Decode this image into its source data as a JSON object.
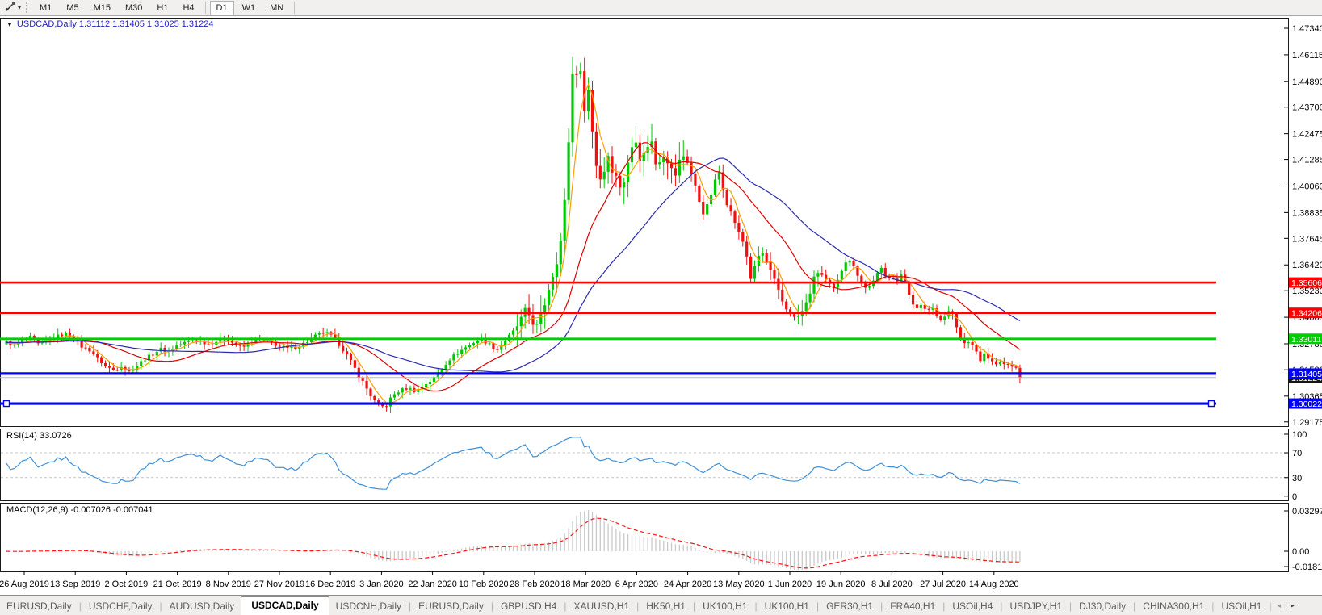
{
  "toolbar": {
    "tool_icon": "trendline-cursor-icon",
    "dropdown_icon": "chevron-down-icon",
    "timeframes": [
      {
        "label": "M1",
        "active": false
      },
      {
        "label": "M5",
        "active": false
      },
      {
        "label": "M15",
        "active": false
      },
      {
        "label": "M30",
        "active": false
      },
      {
        "label": "H1",
        "active": false
      },
      {
        "label": "H4",
        "active": false
      },
      {
        "label": "D1",
        "active": true
      },
      {
        "label": "W1",
        "active": false
      },
      {
        "label": "MN",
        "active": false
      }
    ]
  },
  "chart_title": {
    "dropdown": "▼",
    "text": "USDCAD,Daily  1.31112 1.31405 1.31025 1.31224"
  },
  "price_axis": {
    "labels": [
      "1.47340",
      "1.46115",
      "1.44890",
      "1.43700",
      "1.42475",
      "1.41285",
      "1.40060",
      "1.38835",
      "1.37645",
      "1.36420",
      "1.35230",
      "1.34005",
      "1.32780",
      "1.31580",
      "1.30365",
      "1.29175"
    ]
  },
  "levels": [
    {
      "value": 1.35606,
      "label": "1.35606",
      "color": "#ff0000",
      "width": 2.6,
      "selected": false
    },
    {
      "value": 1.34206,
      "label": "1.34206",
      "color": "#ff0000",
      "width": 2.6,
      "selected": false
    },
    {
      "value": 1.33011,
      "label": "1.33011",
      "color": "#00ce00",
      "width": 2.8,
      "selected": false
    },
    {
      "value": 1.31405,
      "label": "1.31405",
      "color": "#0000ff",
      "width": 3.2,
      "selected": false
    },
    {
      "value": 1.30022,
      "label": "1.30022",
      "color": "#0000ff",
      "width": 3.2,
      "selected": true
    }
  ],
  "current_price": {
    "value": 1.31224,
    "label": "1.31224",
    "line_color": "#bbbbbb",
    "badge_color": "#141414"
  },
  "indicators": {
    "rsi": {
      "label": "RSI(14) 33.0726",
      "period": 14,
      "current": 33.0726,
      "axis": [
        "100",
        "70",
        "30",
        "0"
      ],
      "guide_levels": [
        70,
        30
      ],
      "line_color": "#3f90d8"
    },
    "macd": {
      "label": "MACD(12,26,9) -0.007026 -0.007041",
      "fast": 12,
      "slow": 26,
      "signal": 9,
      "values": [
        -0.007026,
        -0.007041
      ],
      "axis": [
        "0.032972",
        "0.00",
        "-0.018154"
      ],
      "hist_color": "#c9c9c9",
      "signal_color": "#ff1414"
    }
  },
  "x_axis": {
    "dates": [
      "26 Aug 2019",
      "13 Sep 2019",
      "2 Oct 2019",
      "21 Oct 2019",
      "8 Nov 2019",
      "27 Nov 2019",
      "16 Dec 2019",
      "3 Jan 2020",
      "22 Jan 2020",
      "10 Feb 2020",
      "28 Feb 2020",
      "18 Mar 2020",
      "6 Apr 2020",
      "24 Apr 2020",
      "13 May 2020",
      "1 Jun 2020",
      "19 Jun 2020",
      "8 Jul 2020",
      "27 Jul 2020",
      "14 Aug 2020"
    ]
  },
  "tabs": {
    "items": [
      {
        "label": "EURUSD,Daily",
        "active": false
      },
      {
        "label": "USDCHF,Daily",
        "active": false
      },
      {
        "label": "AUDUSD,Daily",
        "active": false
      },
      {
        "label": "USDCAD,Daily",
        "active": true
      },
      {
        "label": "USDCNH,Daily",
        "active": false
      },
      {
        "label": "EURUSD,Daily",
        "active": false
      },
      {
        "label": "GBPUSD,H4",
        "active": false
      },
      {
        "label": "XAUUSD,H1",
        "active": false
      },
      {
        "label": "HK50,H1",
        "active": false
      },
      {
        "label": "UK100,H1",
        "active": false
      },
      {
        "label": "UK100,H1",
        "active": false
      },
      {
        "label": "GER30,H1",
        "active": false
      },
      {
        "label": "FRA40,H1",
        "active": false
      },
      {
        "label": "USOil,H4",
        "active": false
      },
      {
        "label": "USDJPY,H1",
        "active": false
      },
      {
        "label": "DJ30,Daily",
        "active": false
      },
      {
        "label": "CHINA300,H1",
        "active": false
      },
      {
        "label": "USOil,H1",
        "active": false
      }
    ],
    "scroll_left": "◂",
    "scroll_right": "▸"
  },
  "colors": {
    "bull": "#00c800",
    "bear": "#f01010",
    "ma_fast": "#ff9c00",
    "ma_medium": "#e00000",
    "ma_slow": "#2b2bb0",
    "pane_border": "#1a1a1a",
    "grid_dash": "#c4c4c4"
  },
  "chart_data": {
    "type": "candlestick",
    "symbol": "USDCAD",
    "timeframe": "Daily",
    "ohlc_display": {
      "open": 1.31112,
      "high": 1.31405,
      "low": 1.31025,
      "close": 1.31224
    },
    "y_axis": {
      "visible_min": 1.29,
      "visible_max": 1.478
    },
    "support_resistance": [
      1.35606,
      1.34206,
      1.33011,
      1.31405,
      1.30022
    ],
    "moving_averages": [
      {
        "name": "fast",
        "window": 5,
        "color": "#ff9c00"
      },
      {
        "name": "medium",
        "window": 20,
        "color": "#e00000"
      },
      {
        "name": "slow",
        "window": 40,
        "color": "#2b2bb0"
      }
    ],
    "price_path": [
      [
        8,
        1.3285
      ],
      [
        18,
        1.3268
      ],
      [
        28,
        1.3295
      ],
      [
        38,
        1.3308
      ],
      [
        48,
        1.3272
      ],
      [
        58,
        1.3292
      ],
      [
        70,
        1.3312
      ],
      [
        82,
        1.3325
      ],
      [
        92,
        1.3302
      ],
      [
        102,
        1.3262
      ],
      [
        112,
        1.3248
      ],
      [
        122,
        1.3205
      ],
      [
        132,
        1.3172
      ],
      [
        142,
        1.3155
      ],
      [
        150,
        1.3178
      ],
      [
        158,
        1.3148
      ],
      [
        168,
        1.3172
      ],
      [
        178,
        1.3205
      ],
      [
        188,
        1.3228
      ],
      [
        198,
        1.3255
      ],
      [
        208,
        1.3242
      ],
      [
        218,
        1.3268
      ],
      [
        228,
        1.3282
      ],
      [
        238,
        1.3295
      ],
      [
        250,
        1.3288
      ],
      [
        260,
        1.3272
      ],
      [
        270,
        1.3295
      ],
      [
        280,
        1.3302
      ],
      [
        290,
        1.3278
      ],
      [
        300,
        1.3258
      ],
      [
        310,
        1.3288
      ],
      [
        320,
        1.3298
      ],
      [
        332,
        1.3288
      ],
      [
        344,
        1.327
      ],
      [
        356,
        1.3256
      ],
      [
        368,
        1.3264
      ],
      [
        380,
        1.3288
      ],
      [
        392,
        1.3318
      ],
      [
        402,
        1.3332
      ],
      [
        412,
        1.331
      ],
      [
        422,
        1.3268
      ],
      [
        430,
        1.3222
      ],
      [
        438,
        1.3172
      ],
      [
        446,
        1.3122
      ],
      [
        454,
        1.3072
      ],
      [
        462,
        1.3022
      ],
      [
        470,
        1.2984
      ],
      [
        478,
        1.2992
      ],
      [
        486,
        1.3038
      ],
      [
        495,
        1.3062
      ],
      [
        505,
        1.3075
      ],
      [
        515,
        1.3058
      ],
      [
        525,
        1.3088
      ],
      [
        535,
        1.3112
      ],
      [
        545,
        1.3152
      ],
      [
        555,
        1.3202
      ],
      [
        565,
        1.3232
      ],
      [
        575,
        1.3258
      ],
      [
        585,
        1.3282
      ],
      [
        595,
        1.3302
      ],
      [
        605,
        1.3278
      ],
      [
        615,
        1.3248
      ],
      [
        625,
        1.3292
      ],
      [
        635,
        1.3332
      ],
      [
        645,
        1.3385
      ],
      [
        652,
        1.3432
      ],
      [
        658,
        1.3392
      ],
      [
        665,
        1.3355
      ],
      [
        672,
        1.3425
      ],
      [
        680,
        1.3545
      ],
      [
        688,
        1.3645
      ],
      [
        695,
        1.3765
      ],
      [
        700,
        1.396
      ],
      [
        704,
        1.421
      ],
      [
        708,
        1.449
      ],
      [
        712,
        1.4615
      ],
      [
        716,
        1.4455
      ],
      [
        720,
        1.4545
      ],
      [
        724,
        1.436
      ],
      [
        728,
        1.447
      ],
      [
        734,
        1.424
      ],
      [
        740,
        1.406
      ],
      [
        746,
        1.403
      ],
      [
        752,
        1.4165
      ],
      [
        758,
        1.409
      ],
      [
        764,
        1.4035
      ],
      [
        770,
        1.3995
      ],
      [
        776,
        1.4075
      ],
      [
        782,
        1.4185
      ],
      [
        788,
        1.4235
      ],
      [
        794,
        1.4105
      ],
      [
        800,
        1.4185
      ],
      [
        806,
        1.4225
      ],
      [
        812,
        1.411
      ],
      [
        818,
        1.414
      ],
      [
        824,
        1.4165
      ],
      [
        830,
        1.4085
      ],
      [
        836,
        1.4055
      ],
      [
        842,
        1.4125
      ],
      [
        848,
        1.4155
      ],
      [
        854,
        1.4085
      ],
      [
        860,
        1.4015
      ],
      [
        866,
        1.3935
      ],
      [
        872,
        1.3872
      ],
      [
        878,
        1.3938
      ],
      [
        884,
        1.4012
      ],
      [
        890,
        1.4075
      ],
      [
        896,
        1.3985
      ],
      [
        902,
        1.3905
      ],
      [
        908,
        1.3862
      ],
      [
        914,
        1.3795
      ],
      [
        920,
        1.3748
      ],
      [
        926,
        1.3665
      ],
      [
        930,
        1.3572
      ],
      [
        936,
        1.3648
      ],
      [
        942,
        1.3712
      ],
      [
        948,
        1.3662
      ],
      [
        954,
        1.3612
      ],
      [
        960,
        1.3555
      ],
      [
        966,
        1.3495
      ],
      [
        972,
        1.3445
      ],
      [
        978,
        1.3428
      ],
      [
        984,
        1.3392
      ],
      [
        990,
        1.3412
      ],
      [
        996,
        1.3438
      ],
      [
        1002,
        1.3505
      ],
      [
        1008,
        1.3575
      ],
      [
        1014,
        1.3618
      ],
      [
        1020,
        1.3582
      ],
      [
        1026,
        1.3555
      ],
      [
        1032,
        1.3528
      ],
      [
        1038,
        1.3572
      ],
      [
        1044,
        1.3635
      ],
      [
        1050,
        1.3682
      ],
      [
        1056,
        1.3638
      ],
      [
        1062,
        1.3598
      ],
      [
        1068,
        1.3552
      ],
      [
        1074,
        1.3528
      ],
      [
        1080,
        1.3565
      ],
      [
        1086,
        1.3598
      ],
      [
        1092,
        1.3625
      ],
      [
        1098,
        1.3572
      ],
      [
        1104,
        1.3598
      ],
      [
        1110,
        1.3562
      ],
      [
        1118,
        1.3602
      ],
      [
        1124,
        1.3525
      ],
      [
        1130,
        1.3468
      ],
      [
        1136,
        1.3435
      ],
      [
        1142,
        1.3458
      ],
      [
        1148,
        1.3428
      ],
      [
        1154,
        1.3448
      ],
      [
        1160,
        1.3412
      ],
      [
        1166,
        1.3385
      ],
      [
        1172,
        1.3418
      ],
      [
        1178,
        1.3438
      ],
      [
        1184,
        1.3355
      ],
      [
        1190,
        1.3298
      ],
      [
        1196,
        1.3272
      ],
      [
        1202,
        1.3295
      ],
      [
        1208,
        1.3242
      ],
      [
        1214,
        1.3202
      ],
      [
        1220,
        1.3235
      ],
      [
        1226,
        1.3205
      ],
      [
        1232,
        1.3175
      ],
      [
        1238,
        1.3195
      ],
      [
        1244,
        1.3175
      ],
      [
        1250,
        1.3195
      ],
      [
        1256,
        1.3165
      ],
      [
        1260,
        1.3172
      ],
      [
        1263,
        1.31224
      ]
    ]
  }
}
